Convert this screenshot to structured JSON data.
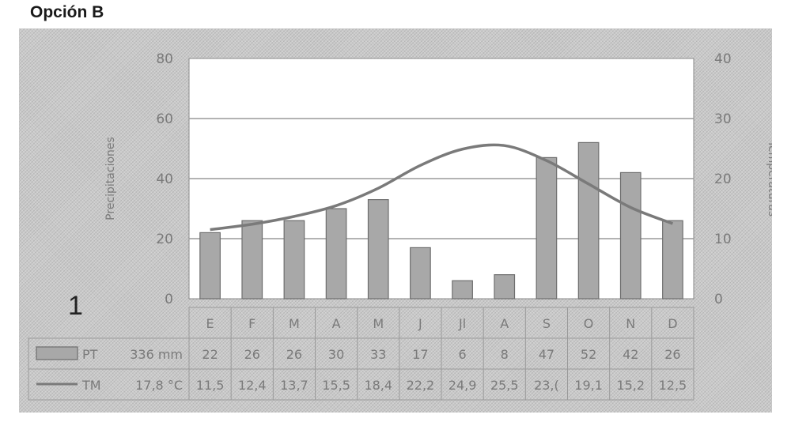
{
  "heading": "Opción B",
  "figure_number": "1",
  "colors": {
    "panel": "#c9c9c9",
    "plot_bg": "#ffffff",
    "bar_fill": "#a8a8a8",
    "line": "#7a7a7a",
    "text": "#7a7a7a"
  },
  "chart_data": {
    "type": "bar",
    "title": "",
    "categories": [
      "E",
      "F",
      "M",
      "A",
      "M",
      "J",
      "Jl",
      "A",
      "S",
      "O",
      "N",
      "D"
    ],
    "left_axis": {
      "label": "Precipitaciones",
      "ylim": [
        0,
        80
      ],
      "ticks": [
        0,
        20,
        40,
        60,
        80
      ]
    },
    "right_axis": {
      "label": "Temperaturas",
      "ylim": [
        0,
        40
      ],
      "ticks": [
        0,
        10,
        20,
        30,
        40
      ]
    },
    "grid": true,
    "series": [
      {
        "name": "PT",
        "type": "bar",
        "axis": "left",
        "values": [
          22,
          26,
          26,
          30,
          33,
          17,
          6,
          8,
          47,
          52,
          42,
          26
        ]
      },
      {
        "name": "TM",
        "type": "line",
        "axis": "right",
        "values": [
          11.5,
          12.4,
          13.7,
          15.5,
          18.4,
          22.2,
          24.9,
          25.5,
          23.0,
          19.1,
          15.2,
          12.5
        ]
      }
    ],
    "table": {
      "rows": [
        {
          "key": "PT",
          "label": "PT",
          "total": "336 mm",
          "cells": [
            "22",
            "26",
            "26",
            "30",
            "33",
            "17",
            "6",
            "8",
            "47",
            "52",
            "42",
            "26"
          ]
        },
        {
          "key": "TM",
          "label": "TM",
          "total": "17,8 °C",
          "cells": [
            "11,5",
            "12,4",
            "13,7",
            "15,5",
            "18,4",
            "22,2",
            "24,9",
            "25,5",
            "23,(",
            "19,1",
            "15,2",
            "12,5"
          ]
        }
      ]
    }
  }
}
